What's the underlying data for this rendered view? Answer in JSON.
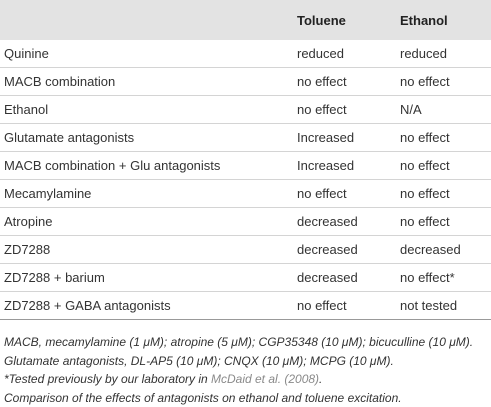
{
  "table": {
    "header": [
      "",
      "Toluene",
      "Ethanol"
    ],
    "rows": [
      [
        "Quinine",
        "reduced",
        "reduced"
      ],
      [
        "MACB combination",
        "no effect",
        "no effect"
      ],
      [
        "Ethanol",
        "no effect",
        "N/A"
      ],
      [
        "Glutamate antagonists",
        "Increased",
        "no effect"
      ],
      [
        "MACB combination + Glu antagonists",
        "Increased",
        "no effect"
      ],
      [
        "Mecamylamine",
        "no effect",
        "no effect"
      ],
      [
        "Atropine",
        "decreased",
        "no effect"
      ],
      [
        "ZD7288",
        "decreased",
        "decreased"
      ],
      [
        "ZD7288 + barium",
        "decreased",
        "no effect*"
      ],
      [
        "ZD7288 + GABA antagonists",
        "no effect",
        "not tested"
      ]
    ]
  },
  "footnotes": {
    "abbreviations": "MACB, mecamylamine (1 μM); atropine (5 μM); CGP35348 (10 μM); bicuculline (10 μM).",
    "glutamate": "Glutamate antagonists, DL-AP5 (10 μM); CNQX (10 μM); MCPG (10 μM).",
    "tested_before": "*Tested previously by our laboratory in ",
    "tested_link": "McDaid et al. (2008)",
    "tested_after": ".",
    "caption": "Comparison of the effects of antagonists on ethanol and toluene excitation."
  }
}
